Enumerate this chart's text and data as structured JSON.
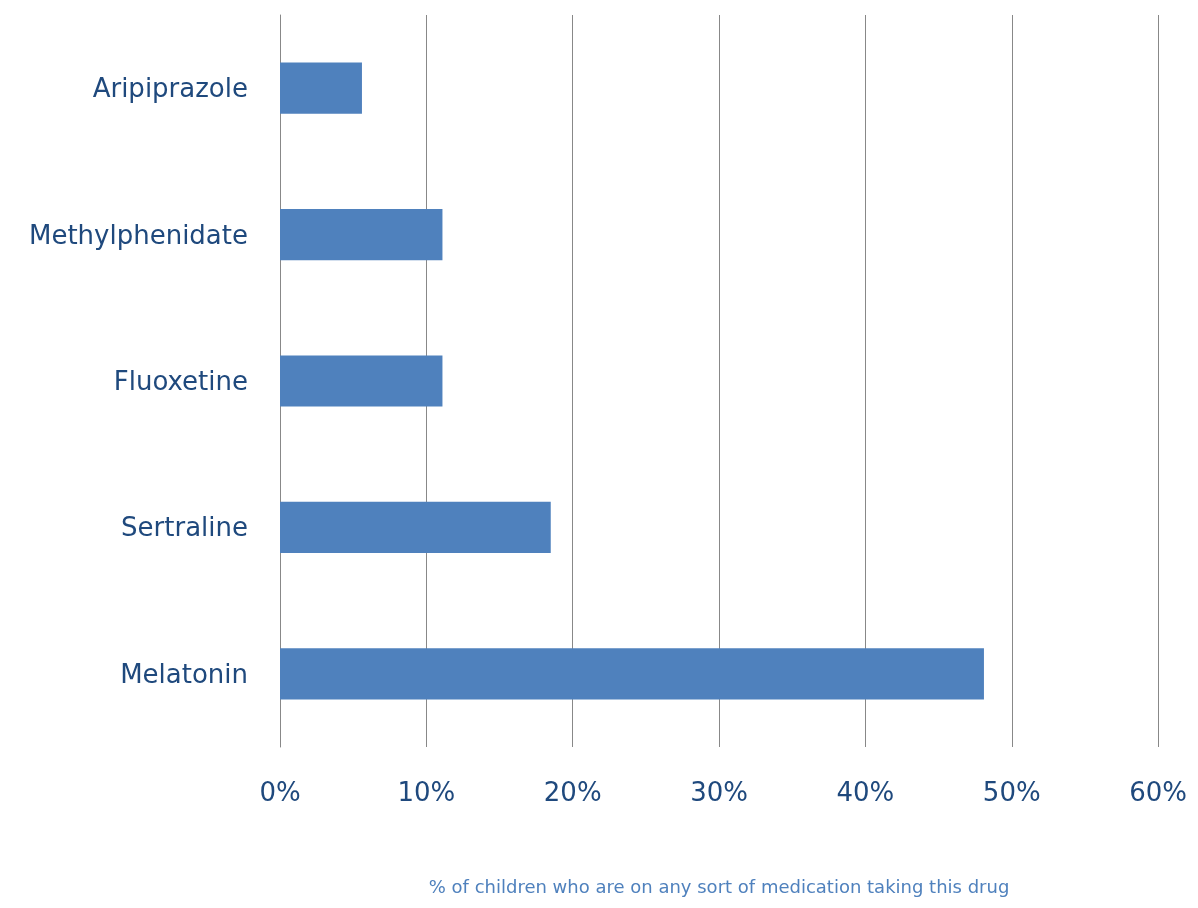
{
  "chart_data": {
    "type": "bar",
    "orientation": "horizontal",
    "categories": [
      "Aripiprazole",
      "Methylphenidate",
      "Fluoxetine",
      "Sertraline",
      "Melatonin"
    ],
    "values": [
      5.6,
      11.1,
      11.1,
      18.5,
      48.1
    ],
    "color": "#4f81bd",
    "xlabel": "% of children who are on any sort of medication taking this drug",
    "xlim": [
      0,
      60
    ],
    "xticks": [
      {
        "value": 0,
        "label": "0%"
      },
      {
        "value": 10,
        "label": "10%"
      },
      {
        "value": 20,
        "label": "20%"
      },
      {
        "value": 30,
        "label": "30%"
      },
      {
        "value": 40,
        "label": "40%"
      },
      {
        "value": 50,
        "label": "50%"
      },
      {
        "value": 60,
        "label": "60%"
      }
    ],
    "grid": "x"
  }
}
